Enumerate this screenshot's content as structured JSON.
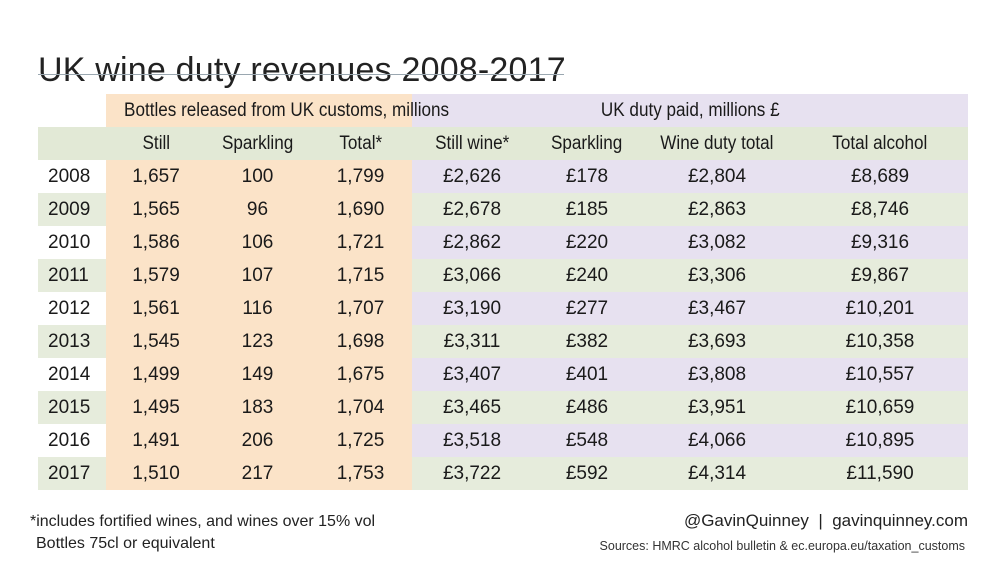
{
  "title": "UK wine duty revenues 2008-2017",
  "group_headers": {
    "bottles": "Bottles released from UK customs, millions",
    "duty": "UK duty paid, millions £"
  },
  "columns": [
    "Still",
    "Sparkling",
    "Total*",
    "Still wine*",
    "Sparkling",
    "Wine duty total",
    "Total alcohol"
  ],
  "rows": [
    {
      "year": "2008",
      "still": "1,657",
      "sparkling": "100",
      "total": "1,799",
      "still_wine": "£2,626",
      "sparkling_duty": "£178",
      "wine_duty_total": "£2,804",
      "total_alcohol": "£8,689"
    },
    {
      "year": "2009",
      "still": "1,565",
      "sparkling": "96",
      "total": "1,690",
      "still_wine": "£2,678",
      "sparkling_duty": "£185",
      "wine_duty_total": "£2,863",
      "total_alcohol": "£8,746"
    },
    {
      "year": "2010",
      "still": "1,586",
      "sparkling": "106",
      "total": "1,721",
      "still_wine": "£2,862",
      "sparkling_duty": "£220",
      "wine_duty_total": "£3,082",
      "total_alcohol": "£9,316"
    },
    {
      "year": "2011",
      "still": "1,579",
      "sparkling": "107",
      "total": "1,715",
      "still_wine": "£3,066",
      "sparkling_duty": "£240",
      "wine_duty_total": "£3,306",
      "total_alcohol": "£9,867"
    },
    {
      "year": "2012",
      "still": "1,561",
      "sparkling": "116",
      "total": "1,707",
      "still_wine": "£3,190",
      "sparkling_duty": "£277",
      "wine_duty_total": "£3,467",
      "total_alcohol": "£10,201"
    },
    {
      "year": "2013",
      "still": "1,545",
      "sparkling": "123",
      "total": "1,698",
      "still_wine": "£3,311",
      "sparkling_duty": "£382",
      "wine_duty_total": "£3,693",
      "total_alcohol": "£10,358"
    },
    {
      "year": "2014",
      "still": "1,499",
      "sparkling": "149",
      "total": "1,675",
      "still_wine": "£3,407",
      "sparkling_duty": "£401",
      "wine_duty_total": "£3,808",
      "total_alcohol": "£10,557"
    },
    {
      "year": "2015",
      "still": "1,495",
      "sparkling": "183",
      "total": "1,704",
      "still_wine": "£3,465",
      "sparkling_duty": "£486",
      "wine_duty_total": "£3,951",
      "total_alcohol": "£10,659"
    },
    {
      "year": "2016",
      "still": "1,491",
      "sparkling": "206",
      "total": "1,725",
      "still_wine": "£3,518",
      "sparkling_duty": "£548",
      "wine_duty_total": "£4,066",
      "total_alcohol": "£10,895"
    },
    {
      "year": "2017",
      "still": "1,510",
      "sparkling": "217",
      "total": "1,753",
      "still_wine": "£3,722",
      "sparkling_duty": "£592",
      "wine_duty_total": "£4,314",
      "total_alcohol": "£11,590"
    }
  ],
  "footnotes": {
    "line1": "*includes fortified wines, and wines over 15% vol",
    "line2": "Bottles 75cl or equivalent"
  },
  "credit": "@GavinQuinney  |  gavinquinney.com",
  "sources": "Sources: HMRC alcohol bulletin & ec.europa.eu/taxation_customs",
  "colors": {
    "orange_band": "#fbe3c8",
    "purple_band": "#e7e1f0",
    "green_band": "#e6ecdc",
    "header_green": "#e2e9d6"
  }
}
